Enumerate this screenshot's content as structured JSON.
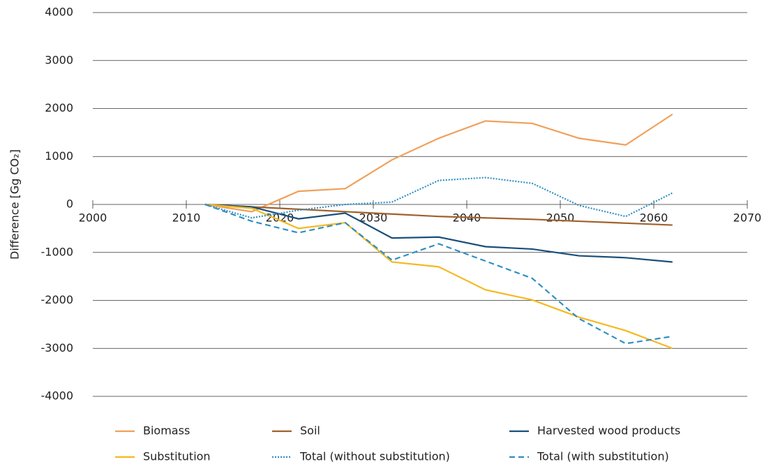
{
  "chart_data": {
    "type": "line",
    "ylabel": "Difference [Gg CO₂]",
    "x": [
      2012,
      2017,
      2022,
      2027,
      2032,
      2037,
      2042,
      2047,
      2052,
      2057,
      2062
    ],
    "series": [
      {
        "name": "Biomass",
        "color": "#f0a05a",
        "dash": "solid",
        "values": [
          0,
          -150,
          275,
          330,
          930,
          1380,
          1740,
          1690,
          1380,
          1240,
          1880
        ]
      },
      {
        "name": "Soil",
        "color": "#a0612b",
        "dash": "solid",
        "values": [
          0,
          -50,
          -100,
          -150,
          -200,
          -250,
          -280,
          -310,
          -350,
          -390,
          -430
        ]
      },
      {
        "name": "Harvested wood products",
        "color": "#1a4f7a",
        "dash": "solid",
        "values": [
          0,
          -50,
          -300,
          -180,
          -700,
          -680,
          -880,
          -930,
          -1070,
          -1110,
          -1200
        ]
      },
      {
        "name": "Substitution",
        "color": "#f5b820",
        "dash": "solid",
        "values": [
          0,
          -80,
          -500,
          -380,
          -1200,
          -1300,
          -1780,
          -1990,
          -2350,
          -2630,
          -3000
        ]
      },
      {
        "name": "Total (without substitution)",
        "color": "#2e8fc4",
        "dash": "dotted",
        "values": [
          0,
          -280,
          -120,
          0,
          50,
          500,
          560,
          440,
          -20,
          -250,
          240
        ]
      },
      {
        "name": "Total (with substitution)",
        "color": "#2e8fc4",
        "dash": "dashed",
        "values": [
          0,
          -350,
          -590,
          -380,
          -1160,
          -820,
          -1180,
          -1540,
          -2380,
          -2900,
          -2750
        ]
      }
    ],
    "xlim": [
      2000,
      2070
    ],
    "xticks": [
      2000,
      2010,
      2020,
      2030,
      2040,
      2050,
      2060,
      2070
    ],
    "ylim": [
      -4000,
      4000
    ],
    "yticks": [
      -4000,
      -3000,
      -2000,
      -1000,
      0,
      1000,
      2000,
      3000,
      4000
    ],
    "grid": true
  }
}
